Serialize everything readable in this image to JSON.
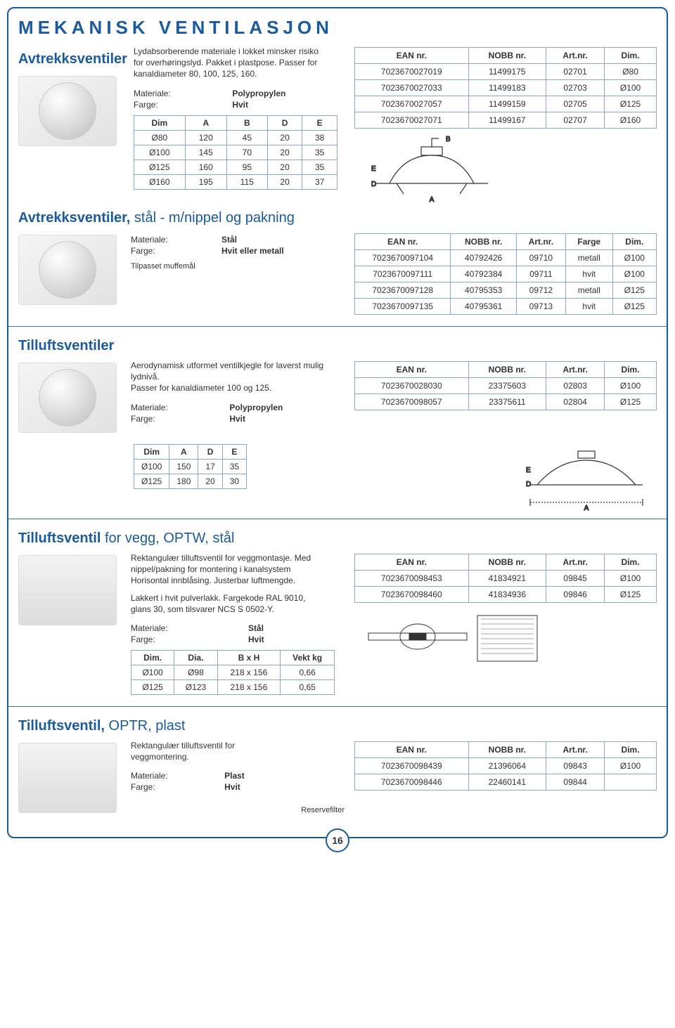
{
  "page": {
    "title": "MEKANISK VENTILASJON",
    "number": "16",
    "colors": {
      "accent": "#1a5a9e",
      "border": "#8aa8c5"
    }
  },
  "s1": {
    "title": "Avtrekksventiler",
    "desc": "Lydabsorberende materiale i lokket minsker risiko for overhøringslyd. Pakket i plastpose. Passer for kanaldiameter 80, 100, 125, 160.",
    "mat_k": "Materiale:",
    "mat_v": "Polypropylen",
    "col_k": "Farge:",
    "col_v": "Hvit",
    "dim_head": [
      "Dim",
      "A",
      "B",
      "D",
      "E"
    ],
    "dim_rows": [
      [
        "Ø80",
        "120",
        "45",
        "20",
        "38"
      ],
      [
        "Ø100",
        "145",
        "70",
        "20",
        "35"
      ],
      [
        "Ø125",
        "160",
        "95",
        "20",
        "35"
      ],
      [
        "Ø160",
        "195",
        "115",
        "20",
        "37"
      ]
    ],
    "prod_head": [
      "EAN nr.",
      "NOBB nr.",
      "Art.nr.",
      "Dim."
    ],
    "prod_rows": [
      [
        "7023670027019",
        "11499175",
        "02701",
        "Ø80"
      ],
      [
        "7023670027033",
        "11499183",
        "02703",
        "Ø100"
      ],
      [
        "7023670027057",
        "11499159",
        "02705",
        "Ø125"
      ],
      [
        "7023670027071",
        "11499167",
        "02707",
        "Ø160"
      ]
    ]
  },
  "s2": {
    "title": "Avtrekksventiler,",
    "subtitle": " stål - m/nippel og pakning",
    "mat_k": "Materiale:",
    "mat_v": "Stål",
    "col_k": "Farge:",
    "col_v": "Hvit eller metall",
    "note": "Tilpasset muffemål",
    "prod_head": [
      "EAN nr.",
      "NOBB nr.",
      "Art.nr.",
      "Farge",
      "Dim."
    ],
    "prod_rows": [
      [
        "7023670097104",
        "40792426",
        "09710",
        "metall",
        "Ø100"
      ],
      [
        "7023670097111",
        "40792384",
        "09711",
        "hvit",
        "Ø100"
      ],
      [
        "7023670097128",
        "40795353",
        "09712",
        "metall",
        "Ø125"
      ],
      [
        "7023670097135",
        "40795361",
        "09713",
        "hvit",
        "Ø125"
      ]
    ]
  },
  "s3": {
    "title": "Tilluftsventiler",
    "desc": "Aerodynamisk utformet ventilkjegle for laverst mulig lydnivå.\nPasser for kanaldiameter 100 og 125.",
    "mat_k": "Materiale:",
    "mat_v": "Polypropylen",
    "col_k": "Farge:",
    "col_v": "Hvit",
    "dim_head": [
      "Dim",
      "A",
      "D",
      "E"
    ],
    "dim_rows": [
      [
        "Ø100",
        "150",
        "17",
        "35"
      ],
      [
        "Ø125",
        "180",
        "20",
        "30"
      ]
    ],
    "prod_head": [
      "EAN nr.",
      "NOBB nr.",
      "Art.nr.",
      "Dim."
    ],
    "prod_rows": [
      [
        "7023670028030",
        "23375603",
        "02803",
        "Ø100"
      ],
      [
        "7023670098057",
        "23375611",
        "02804",
        "Ø125"
      ]
    ]
  },
  "s4": {
    "title": "Tilluftsventil",
    "subtitle": " for vegg, OPTW, stål",
    "desc": "Rektangulær tilluftsventil for veggmontasje. Med nippel/pakning for montering i kanalsystem Horisontal innblåsing. Justerbar luftmengde.",
    "desc2": "Lakkert i hvit pulverlakk. Fargekode RAL 9010, glans 30, som tilsvarer NCS S 0502-Y.",
    "mat_k": "Materiale:",
    "mat_v": "Stål",
    "col_k": "Farge:",
    "col_v": "Hvit",
    "dim_head": [
      "Dim.",
      "Dia.",
      "B x H",
      "Vekt kg"
    ],
    "dim_rows": [
      [
        "Ø100",
        "Ø98",
        "218 x 156",
        "0,66"
      ],
      [
        "Ø125",
        "Ø123",
        "218 x 156",
        "0,65"
      ]
    ],
    "prod_head": [
      "EAN nr.",
      "NOBB nr.",
      "Art.nr.",
      "Dim."
    ],
    "prod_rows": [
      [
        "7023670098453",
        "41834921",
        "09845",
        "Ø100"
      ],
      [
        "7023670098460",
        "41834936",
        "09846",
        "Ø125"
      ]
    ]
  },
  "s5": {
    "title": "Tilluftsventil,",
    "subtitle": " OPTR, plast",
    "desc": "Rektangulær tilluftsventil for veggmontering.",
    "mat_k": "Materiale:",
    "mat_v": "Plast",
    "col_k": "Farge:",
    "col_v": "Hvit",
    "reserve": "Reservefilter",
    "prod_head": [
      "EAN nr.",
      "NOBB nr.",
      "Art.nr.",
      "Dim."
    ],
    "prod_rows": [
      [
        "7023670098439",
        "21396064",
        "09843",
        "Ø100"
      ],
      [
        "7023670098446",
        "22460141",
        "09844",
        ""
      ]
    ]
  }
}
